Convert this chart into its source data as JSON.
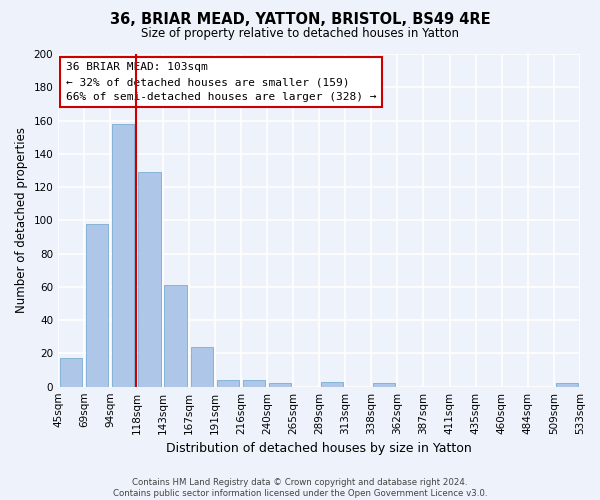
{
  "title": "36, BRIAR MEAD, YATTON, BRISTOL, BS49 4RE",
  "subtitle": "Size of property relative to detached houses in Yatton",
  "xlabel": "Distribution of detached houses by size in Yatton",
  "ylabel": "Number of detached properties",
  "bar_values": [
    17,
    98,
    158,
    129,
    61,
    24,
    4,
    4,
    2,
    0,
    3,
    0,
    2,
    0,
    0,
    0,
    0,
    0,
    0,
    2
  ],
  "bar_labels": [
    "45sqm",
    "69sqm",
    "94sqm",
    "118sqm",
    "143sqm",
    "167sqm",
    "191sqm",
    "216sqm",
    "240sqm",
    "265sqm",
    "289sqm",
    "313sqm",
    "338sqm",
    "362sqm",
    "387sqm",
    "411sqm",
    "435sqm",
    "460sqm",
    "484sqm",
    "509sqm",
    "533sqm"
  ],
  "bar_color": "#aec6e8",
  "vline_color": "#cc0000",
  "vline_pos": 2.5,
  "ylim": [
    0,
    200
  ],
  "yticks": [
    0,
    20,
    40,
    60,
    80,
    100,
    120,
    140,
    160,
    180,
    200
  ],
  "annotation_title": "36 BRIAR MEAD: 103sqm",
  "annotation_line1": "← 32% of detached houses are smaller (159)",
  "annotation_line2": "66% of semi-detached houses are larger (328) →",
  "annotation_box_color": "#ffffff",
  "annotation_box_edge": "#cc0000",
  "footer_line1": "Contains HM Land Registry data © Crown copyright and database right 2024.",
  "footer_line2": "Contains public sector information licensed under the Open Government Licence v3.0.",
  "background_color": "#eef2fa",
  "grid_color": "#ffffff"
}
